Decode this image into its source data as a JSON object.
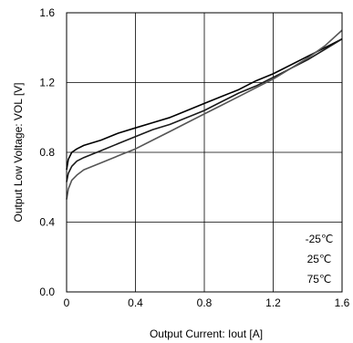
{
  "chart_data": {
    "type": "line",
    "title": "",
    "xlabel": "Output Current: Iout [A]",
    "ylabel": "Output Low Voltage: VOL [V]",
    "xlim": [
      0,
      1.6
    ],
    "ylim": [
      0,
      1.6
    ],
    "xticks": [
      0,
      0.4,
      0.8,
      1.2,
      1.6
    ],
    "yticks": [
      0,
      0.4,
      0.8,
      1.2,
      1.6
    ],
    "xtick_labels": [
      "0",
      "0.4",
      "0.8",
      "1.2",
      "1.6"
    ],
    "ytick_labels": [
      "0.0",
      "0.4",
      "0.8",
      "1.2",
      "1.6"
    ],
    "grid": true,
    "legend_position": "bottom-right",
    "series": [
      {
        "name": "-25℃",
        "color": "#000000",
        "x": [
          0,
          0.01,
          0.03,
          0.06,
          0.1,
          0.2,
          0.3,
          0.4,
          0.5,
          0.6,
          0.7,
          0.8,
          0.9,
          1.0,
          1.1,
          1.2,
          1.3,
          1.4,
          1.5,
          1.6
        ],
        "y": [
          0.7,
          0.76,
          0.8,
          0.82,
          0.84,
          0.87,
          0.91,
          0.94,
          0.97,
          1.0,
          1.04,
          1.08,
          1.12,
          1.16,
          1.21,
          1.25,
          1.3,
          1.35,
          1.4,
          1.45
        ]
      },
      {
        "name": "25℃",
        "color": "#1a1a1a",
        "x": [
          0,
          0.01,
          0.03,
          0.06,
          0.1,
          0.2,
          0.3,
          0.4,
          0.5,
          0.6,
          0.7,
          0.8,
          0.9,
          1.0,
          1.1,
          1.2,
          1.3,
          1.4,
          1.5,
          1.6
        ],
        "y": [
          0.63,
          0.68,
          0.72,
          0.75,
          0.77,
          0.81,
          0.85,
          0.89,
          0.93,
          0.96,
          1.0,
          1.04,
          1.09,
          1.14,
          1.18,
          1.23,
          1.28,
          1.33,
          1.39,
          1.45
        ]
      },
      {
        "name": "75℃",
        "color": "#555555",
        "x": [
          0,
          0.01,
          0.03,
          0.06,
          0.1,
          0.2,
          0.3,
          0.4,
          0.5,
          0.6,
          0.7,
          0.8,
          0.9,
          1.0,
          1.1,
          1.2,
          1.3,
          1.4,
          1.5,
          1.6
        ],
        "y": [
          0.53,
          0.59,
          0.64,
          0.67,
          0.7,
          0.74,
          0.78,
          0.82,
          0.87,
          0.92,
          0.97,
          1.02,
          1.07,
          1.12,
          1.17,
          1.22,
          1.28,
          1.34,
          1.41,
          1.5
        ]
      }
    ]
  }
}
